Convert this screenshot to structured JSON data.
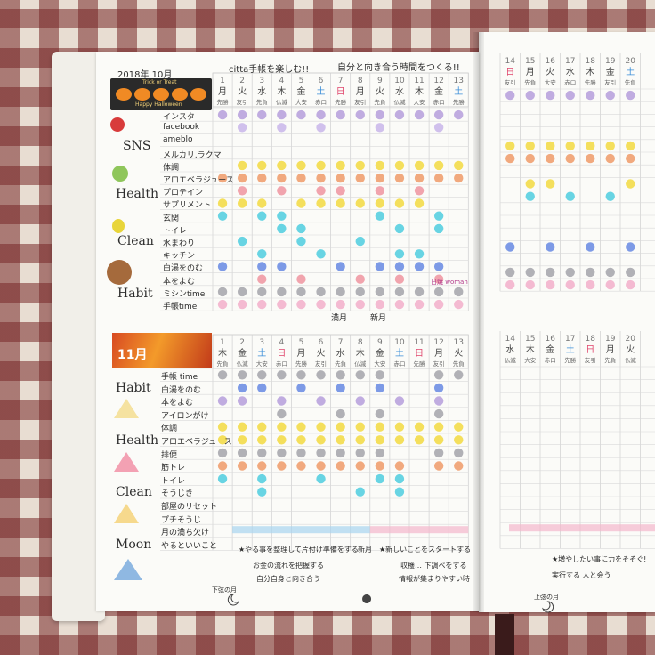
{
  "left_page": {
    "heading_left": "2018年 10月",
    "heading_mid": "citta手帳を楽しむ!!",
    "heading_right": "自分と向き合う時間をつくる!!",
    "badge_top": "Trick or Treat",
    "badge_bottom": "Happy Halloween",
    "october": {
      "days": [
        "1",
        "2",
        "3",
        "4",
        "5",
        "6",
        "7",
        "8",
        "9",
        "10",
        "11",
        "12",
        "13"
      ],
      "weekdays": [
        "月",
        "火",
        "水",
        "木",
        "金",
        "土",
        "日",
        "月",
        "火",
        "水",
        "木",
        "金",
        "土"
      ],
      "rokuyo": [
        "先勝",
        "友引",
        "先負",
        "仏滅",
        "大安",
        "赤口",
        "先勝",
        "友引",
        "先負",
        "仏滅",
        "大安",
        "赤口",
        "先勝"
      ],
      "categories": [
        "SNS",
        "Health",
        "Clean",
        "Habit"
      ],
      "rows": [
        "インスタ",
        "facebook",
        "ameblo",
        "メルカリ,ラクマ",
        "体調",
        "アロエベラジュース",
        "プロテイン",
        "サプリメント",
        "玄関",
        "トイレ",
        "水まわり",
        "キッチン",
        "白湯をのむ",
        "本をよむ",
        "ミシンtime",
        "手帳time"
      ],
      "notes": [
        "満月",
        "新月",
        "日焼 woman"
      ]
    },
    "november": {
      "title": "11月",
      "days": [
        "1",
        "2",
        "3",
        "4",
        "5",
        "6",
        "7",
        "8",
        "9",
        "10",
        "11",
        "12",
        "13"
      ],
      "weekdays": [
        "木",
        "金",
        "土",
        "日",
        "月",
        "火",
        "水",
        "木",
        "金",
        "土",
        "日",
        "月",
        "火"
      ],
      "rokuyo": [
        "先負",
        "仏滅",
        "大安",
        "赤口",
        "先勝",
        "友引",
        "先負",
        "仏滅",
        "大安",
        "赤口",
        "先勝",
        "友引",
        "先負"
      ],
      "categories": [
        "Habit",
        "Health",
        "Clean",
        "Moon"
      ],
      "rows": [
        "手帳 time",
        "白湯をのむ",
        "本をよむ",
        "アイロンがけ",
        "体調",
        "アロエベラジュース",
        "排便",
        "筋トレ",
        "トイレ",
        "そうじき",
        "部屋のリセット",
        "プチそうじ",
        "月の満ち欠け",
        "やるといいこと"
      ],
      "memo_1": "★やる事を整理して片付け準備をする",
      "memo_2": "お金の流れを把握する",
      "memo_3": "自分自身と向き合う",
      "memo_4": "新月",
      "memo_5": "★新しいことをスタートする",
      "memo_6": "収穫… 下調べをする",
      "memo_7": "情報が集まりやすい時",
      "moon_left": "下弦の月",
      "moon_right": "上弦の月"
    }
  },
  "right_page": {
    "top": {
      "days": [
        "14",
        "15",
        "16",
        "17",
        "18",
        "19",
        "20"
      ],
      "weekdays": [
        "日",
        "月",
        "火",
        "水",
        "木",
        "金",
        "土"
      ],
      "rokuyo": [
        "友引",
        "先負",
        "大安",
        "赤口",
        "先勝",
        "友引",
        "先負"
      ]
    },
    "bottom": {
      "days": [
        "14",
        "15",
        "16",
        "17",
        "18",
        "19",
        "20"
      ],
      "weekdays": [
        "水",
        "木",
        "金",
        "土",
        "日",
        "月",
        "火"
      ],
      "rokuyo": [
        "仏滅",
        "大安",
        "赤口",
        "先勝",
        "友引",
        "先負",
        "仏滅"
      ],
      "memo": "★増やしたい事に力をそそぐ! 実行する 人と会う"
    }
  },
  "colors": {
    "purple": "#b9a3dd",
    "yellow": "#f3dc4a",
    "orange": "#f0a070",
    "pink": "#ef9aa4",
    "cyan": "#58cfe0",
    "blue": "#6f8fe3",
    "gray": "#a9a9ae",
    "lavender": "#cbb9ea",
    "lightpink": "#f3b2cc"
  }
}
